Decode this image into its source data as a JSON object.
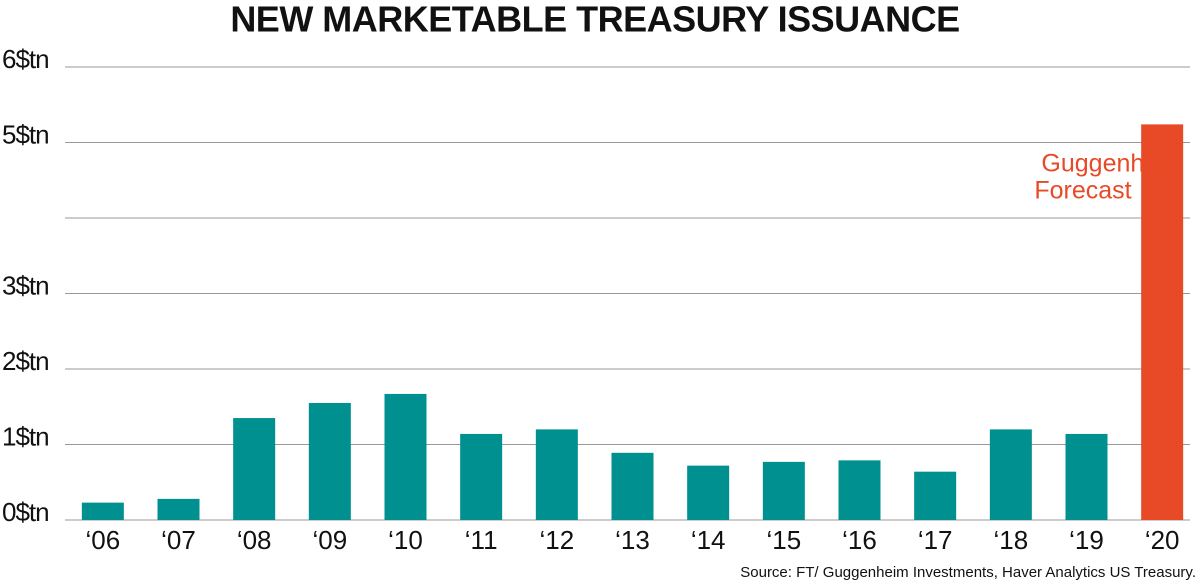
{
  "chart_data": {
    "type": "bar",
    "title": "NEW MARKETABLE TREASURY ISSUANCE",
    "categories": [
      "‘06",
      "‘07",
      "‘08",
      "‘09",
      "‘10",
      "‘11",
      "‘12",
      "‘13",
      "‘14",
      "‘15",
      "‘16",
      "‘17",
      "‘18",
      "‘19",
      "‘20"
    ],
    "values": [
      0.23,
      0.28,
      1.35,
      1.55,
      1.67,
      1.14,
      1.2,
      0.89,
      0.72,
      0.77,
      0.79,
      0.64,
      1.2,
      1.14,
      5.24
    ],
    "colors": [
      "#00908f",
      "#00908f",
      "#00908f",
      "#00908f",
      "#00908f",
      "#00908f",
      "#00908f",
      "#00908f",
      "#00908f",
      "#00908f",
      "#00908f",
      "#00908f",
      "#00908f",
      "#00908f",
      "#e84a27"
    ],
    "ylim": [
      0,
      6
    ],
    "yticks": [
      {
        "value": 0,
        "label": "0$tn"
      },
      {
        "value": 1,
        "label": "1$tn"
      },
      {
        "value": 2,
        "label": "2$tn"
      },
      {
        "value": 3,
        "label": "3$tn"
      },
      {
        "value": 4,
        "label": null
      },
      {
        "value": 5,
        "label": "5$tn"
      },
      {
        "value": 6,
        "label": "6$tn"
      }
    ],
    "grid": true,
    "annotation": [
      "Guggenheim",
      "Forecast"
    ],
    "annotation_color": "#e84a27",
    "source": "Source: FT/ Guggenheim Investments, Haver Analytics US Treasury."
  }
}
